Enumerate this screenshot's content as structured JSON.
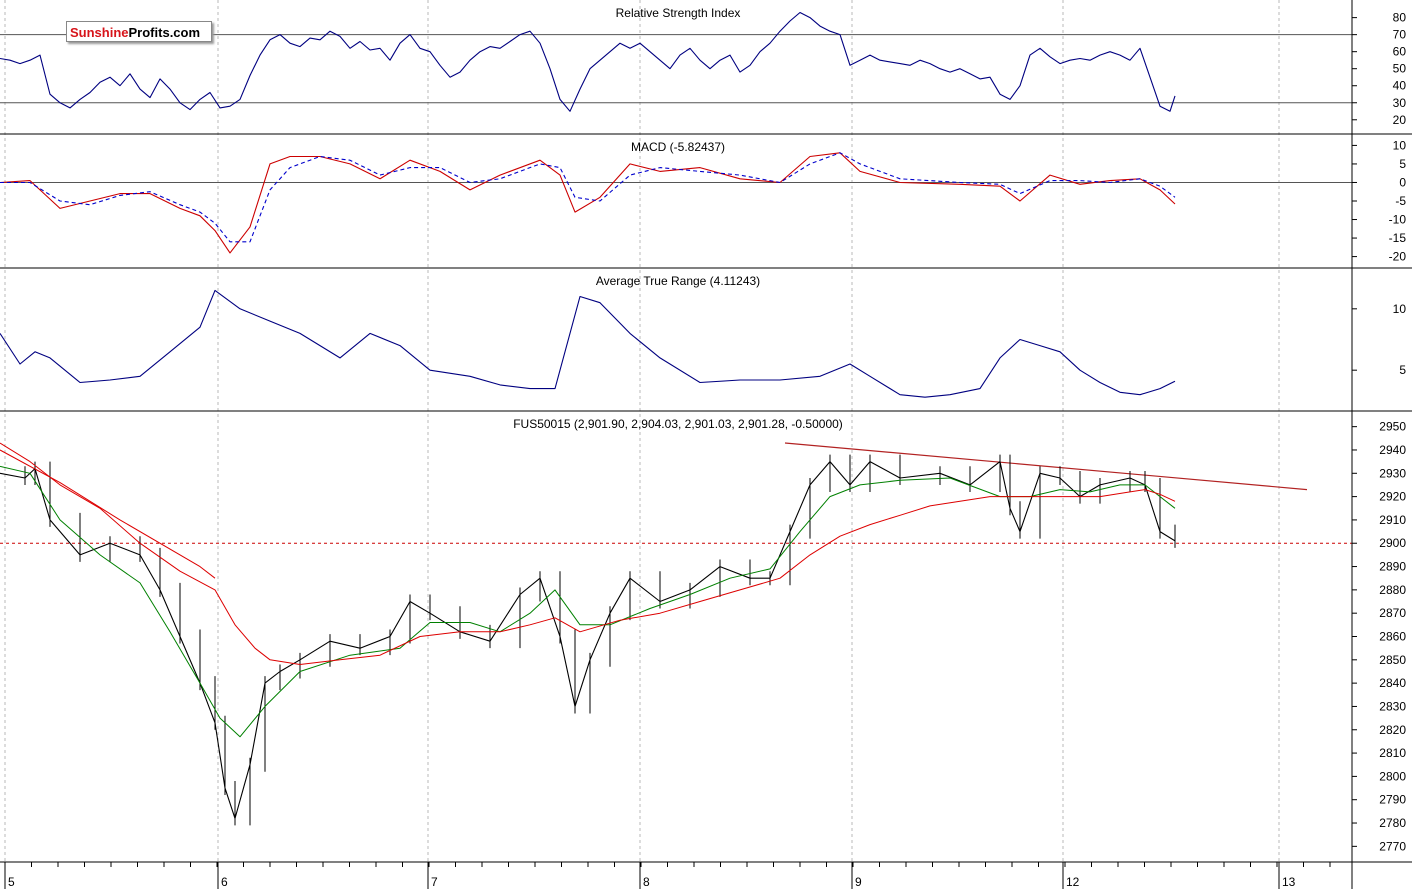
{
  "colors": {
    "background": "#ffffff",
    "grid": "#b9b9b9",
    "rsi_line": "#000080",
    "macd_line": "#cc0000",
    "signal_line": "#0000cc",
    "atr_line": "#000080",
    "price_bars": "#000000",
    "ma_short": "#008000",
    "ma_long": "#dd0000",
    "trendline": "#b22222",
    "hline": "#cc0000"
  },
  "logo": {
    "part1": "Sunshine",
    "part2": "Profits",
    "part3": ".com"
  },
  "x_axis": {
    "day_labels": [
      "5",
      "6",
      "7",
      "8",
      "9",
      "12",
      "13"
    ]
  },
  "chart_data": [
    {
      "type": "line",
      "title": "Relative Strength Index",
      "ylim": [
        14,
        88
      ],
      "yticks": [
        20,
        30,
        40,
        50,
        60,
        70,
        80
      ],
      "reference_lines": [
        30,
        70
      ],
      "series": [
        {
          "x": [
            0,
            10,
            20,
            30,
            40,
            50,
            60,
            70,
            80,
            90,
            100,
            110,
            120,
            130,
            140,
            150,
            160,
            170,
            180,
            190,
            200,
            210,
            220,
            230,
            240,
            250,
            260,
            270,
            280,
            290,
            300,
            310,
            320,
            330,
            340,
            350,
            360,
            370,
            380,
            390,
            400,
            410,
            420,
            430,
            440,
            450,
            460,
            470,
            480,
            490,
            500,
            510,
            520,
            530,
            540,
            550,
            560,
            570,
            580,
            590,
            600,
            610,
            620,
            630,
            640,
            650,
            660,
            670,
            680,
            690,
            700,
            710,
            720,
            730,
            740,
            750,
            760,
            770,
            780,
            790,
            800,
            810,
            820,
            830,
            840,
            850,
            860,
            870,
            880,
            890,
            900,
            910,
            920,
            930,
            940,
            950,
            960,
            970,
            980,
            990,
            1000,
            1010,
            1020,
            1030,
            1040,
            1050,
            1060,
            1070,
            1080,
            1090,
            1100,
            1110,
            1120,
            1130,
            1140,
            1150,
            1160,
            1170,
            1175
          ],
          "values": [
            56,
            55,
            53,
            55,
            58,
            35,
            30,
            27,
            32,
            36,
            42,
            45,
            40,
            47,
            38,
            33,
            44,
            38,
            30,
            26,
            32,
            36,
            27,
            28,
            32,
            46,
            58,
            67,
            70,
            65,
            63,
            68,
            67,
            72,
            69,
            62,
            66,
            61,
            62,
            55,
            65,
            70,
            62,
            60,
            52,
            45,
            48,
            55,
            60,
            63,
            62,
            66,
            70,
            72,
            65,
            50,
            32,
            25,
            38,
            50,
            55,
            60,
            65,
            62,
            65,
            60,
            55,
            50,
            58,
            62,
            55,
            50,
            55,
            58,
            48,
            52,
            60,
            65,
            72,
            78,
            83,
            80,
            75,
            72,
            70,
            52,
            55,
            58,
            55,
            54,
            53,
            52,
            55,
            53,
            50,
            48,
            50,
            47,
            44,
            45,
            35,
            32,
            40,
            58,
            62,
            57,
            53,
            55,
            56,
            55,
            58,
            60,
            58,
            55,
            62,
            45,
            28,
            25,
            34
          ]
        }
      ]
    },
    {
      "type": "line",
      "title": "MACD (-5.82437)",
      "ylim": [
        -22,
        12
      ],
      "yticks": [
        10,
        5,
        0,
        -5,
        -10,
        -15,
        -20
      ],
      "reference_lines": [
        0
      ],
      "series": [
        {
          "x": [
            0,
            30,
            60,
            90,
            120,
            150,
            180,
            200,
            215,
            230,
            250,
            270,
            290,
            320,
            350,
            380,
            410,
            440,
            470,
            500,
            540,
            560,
            575,
            600,
            630,
            660,
            700,
            740,
            780,
            810,
            840,
            860,
            900,
            960,
            1000,
            1020,
            1050,
            1080,
            1110,
            1140,
            1160,
            1175
          ],
          "values": [
            0,
            0.5,
            -7,
            -5,
            -3,
            -3,
            -7,
            -9,
            -13,
            -19,
            -12,
            5,
            7,
            7,
            5,
            1,
            6,
            3,
            -2,
            2,
            6,
            2,
            -8,
            -4,
            5,
            3,
            4,
            1,
            0,
            7,
            8,
            3,
            0,
            -0.5,
            -1,
            -5,
            2,
            -0.5,
            0.5,
            1,
            -2,
            -5.8
          ]
        },
        {
          "x": [
            0,
            30,
            60,
            90,
            120,
            150,
            180,
            200,
            215,
            230,
            250,
            270,
            290,
            320,
            350,
            380,
            410,
            440,
            470,
            500,
            540,
            560,
            575,
            600,
            630,
            660,
            700,
            740,
            780,
            810,
            840,
            860,
            900,
            960,
            1000,
            1020,
            1050,
            1080,
            1110,
            1140,
            1160,
            1175
          ],
          "values": [
            0,
            0,
            -5,
            -6,
            -3.5,
            -2.5,
            -6,
            -8,
            -11,
            -16,
            -16,
            -2,
            4,
            7,
            6,
            2,
            4,
            4,
            0,
            1,
            5,
            4,
            -4,
            -5,
            2,
            4,
            3,
            2,
            0,
            5,
            8,
            5,
            1,
            0,
            -0.5,
            -3,
            0.5,
            0.5,
            0,
            1,
            -1,
            -4
          ]
        }
      ]
    },
    {
      "type": "line",
      "title": "Average True Range (4.11243)",
      "ylim": [
        2,
        13
      ],
      "yticks": [
        10,
        5
      ],
      "series": [
        {
          "x": [
            0,
            20,
            35,
            50,
            80,
            110,
            140,
            170,
            200,
            215,
            240,
            270,
            300,
            340,
            370,
            400,
            430,
            470,
            500,
            530,
            555,
            580,
            600,
            630,
            660,
            700,
            740,
            780,
            820,
            850,
            870,
            900,
            925,
            950,
            980,
            1000,
            1020,
            1040,
            1060,
            1080,
            1100,
            1120,
            1140,
            1160,
            1175
          ],
          "values": [
            8,
            5.5,
            6.5,
            6,
            4,
            4.2,
            4.5,
            6.5,
            8.5,
            11.5,
            10,
            9,
            8,
            6,
            8,
            7,
            5,
            4.5,
            3.8,
            3.5,
            3.5,
            11,
            10.5,
            8,
            6,
            4,
            4.2,
            4.2,
            4.5,
            5.5,
            4.5,
            3,
            2.8,
            3,
            3.5,
            6,
            7.5,
            7,
            6.5,
            5,
            4,
            3.2,
            3,
            3.5,
            4.1
          ]
        }
      ]
    },
    {
      "type": "line",
      "title": "FUS50015 (2,901.90, 2,904.03, 2,901.03, 2,901.28, -0.50000)",
      "ylim": [
        2765,
        2955
      ],
      "yticks": [
        2950,
        2940,
        2930,
        2920,
        2910,
        2900,
        2890,
        2880,
        2870,
        2860,
        2850,
        2840,
        2830,
        2820,
        2810,
        2800,
        2790,
        2780,
        2770
      ],
      "reference_lines": [
        2900
      ],
      "trendline": {
        "x": [
          785,
          1307
        ],
        "values": [
          2943,
          2923
        ]
      },
      "series": [
        {
          "x": [
            0,
            25,
            35,
            50,
            80,
            110,
            140,
            160,
            180,
            200,
            215,
            225,
            235,
            250,
            265,
            280,
            300,
            330,
            360,
            390,
            410,
            430,
            460,
            490,
            520,
            540,
            560,
            575,
            590,
            610,
            630,
            660,
            690,
            720,
            750,
            770,
            790,
            810,
            830,
            850,
            870,
            900,
            940,
            970,
            1000,
            1010,
            1020,
            1040,
            1060,
            1080,
            1100,
            1130,
            1145,
            1160,
            1175
          ],
          "values": [
            2930,
            2928,
            2932,
            2910,
            2895,
            2900,
            2895,
            2880,
            2860,
            2840,
            2823,
            2795,
            2782,
            2805,
            2840,
            2845,
            2850,
            2858,
            2855,
            2860,
            2875,
            2870,
            2862,
            2858,
            2878,
            2885,
            2860,
            2830,
            2850,
            2870,
            2885,
            2875,
            2880,
            2890,
            2885,
            2885,
            2905,
            2925,
            2935,
            2925,
            2935,
            2928,
            2930,
            2925,
            2935,
            2915,
            2905,
            2930,
            2928,
            2920,
            2925,
            2928,
            2925,
            2905,
            2901
          ]
        },
        {
          "x": [
            0,
            30,
            60,
            100,
            140,
            170,
            200,
            220,
            240,
            265,
            300,
            350,
            400,
            430,
            470,
            500,
            530,
            555,
            580,
            610,
            650,
            690,
            730,
            770,
            800,
            830,
            860,
            900,
            950,
            1000,
            1030,
            1060,
            1090,
            1120,
            1145,
            1160,
            1175
          ],
          "values": [
            2933,
            2930,
            2910,
            2895,
            2883,
            2862,
            2840,
            2825,
            2817,
            2830,
            2845,
            2852,
            2855,
            2866,
            2866,
            2862,
            2870,
            2880,
            2865,
            2865,
            2872,
            2878,
            2885,
            2889,
            2905,
            2920,
            2925,
            2927,
            2928,
            2920,
            2920,
            2923,
            2922,
            2925,
            2925,
            2920,
            2915
          ]
        },
        {
          "x": [
            0,
            30,
            60,
            100,
            140,
            180,
            215,
            235,
            255,
            270,
            300,
            340,
            380,
            420,
            460,
            500,
            530,
            555,
            580,
            620,
            660,
            700,
            740,
            780,
            810,
            840,
            870,
            900,
            930,
            960,
            990,
            1020,
            1060,
            1100,
            1130,
            1145,
            1160,
            1175
          ],
          "values": [
            2943,
            2935,
            2925,
            2915,
            2900,
            2888,
            2880,
            2865,
            2855,
            2850,
            2848,
            2850,
            2852,
            2860,
            2862,
            2862,
            2865,
            2868,
            2862,
            2867,
            2870,
            2875,
            2880,
            2885,
            2895,
            2903,
            2908,
            2912,
            2916,
            2918,
            2920,
            2920,
            2920,
            2920,
            2922,
            2923,
            2921,
            2918
          ]
        },
        {
          "x": [
            0,
            60,
            120,
            200,
            215
          ],
          "values": [
            2940,
            2926,
            2910,
            2890,
            2885
          ]
        }
      ]
    }
  ]
}
